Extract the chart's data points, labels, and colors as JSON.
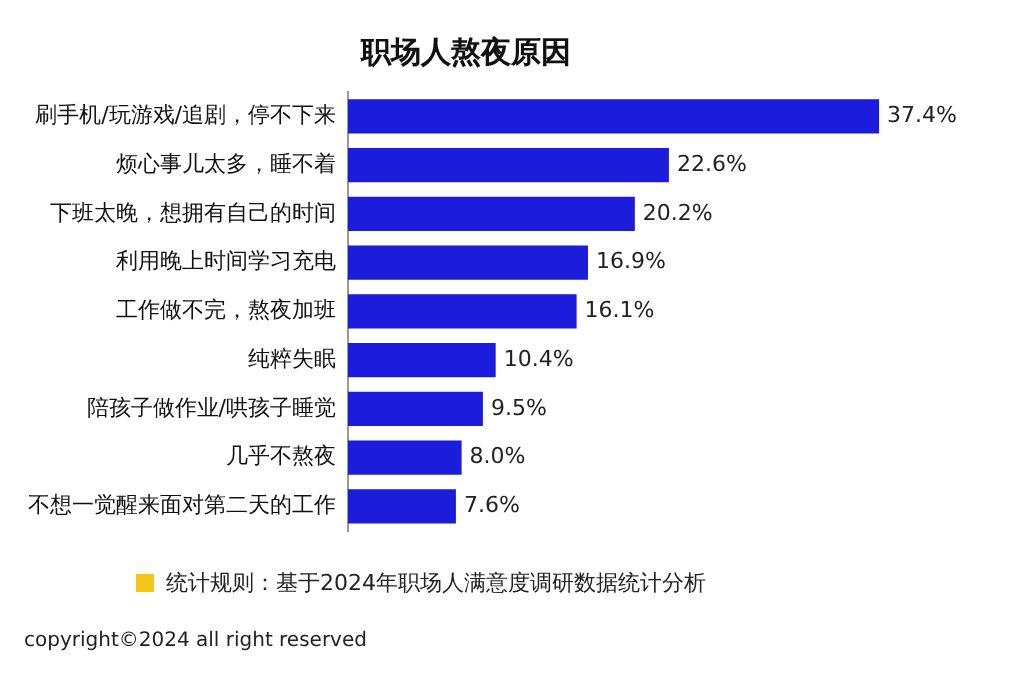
{
  "chart_data": {
    "type": "bar",
    "orientation": "horizontal",
    "title": "职场人熬夜原因",
    "categories": [
      "刷手机/玩游戏/追剧，停不下来",
      "烦心事儿太多，睡不着",
      "下班太晚，想拥有自己的时间",
      "利用晚上时间学习充电",
      "工作做不完，熬夜加班",
      "纯粹失眠",
      "陪孩子做作业/哄孩子睡觉",
      "几乎不熬夜",
      "不想一觉醒来面对第二天的工作"
    ],
    "values": [
      37.4,
      22.6,
      20.2,
      16.9,
      16.1,
      10.4,
      9.5,
      8.0,
      7.6
    ],
    "value_labels": [
      "37.4%",
      "22.6%",
      "20.2%",
      "16.9%",
      "16.1%",
      "10.4%",
      "9.5%",
      "8.0%",
      "7.6%"
    ],
    "color": "#1c1cdc",
    "annotations": [
      "统计规则：基于2024年职场人满意度调研数据统计分析",
      "copyright©2024 all right reserved"
    ]
  }
}
